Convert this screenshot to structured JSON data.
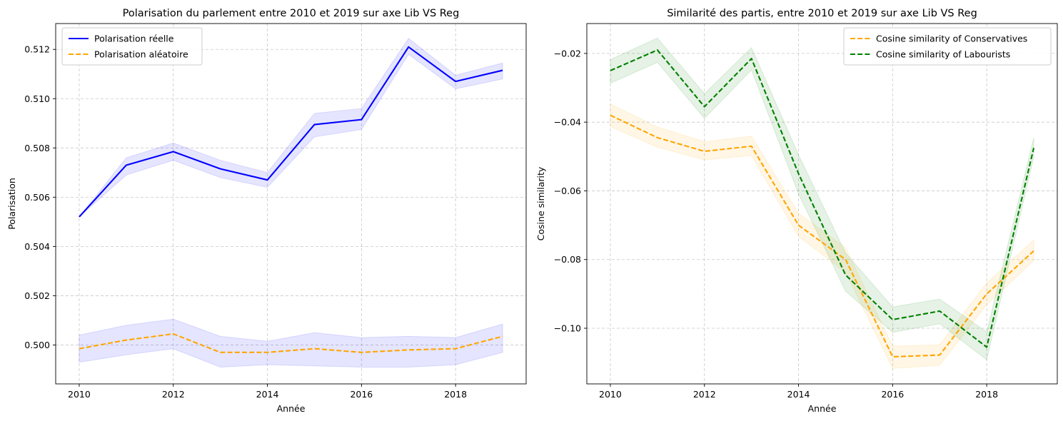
{
  "chart_data": [
    {
      "type": "line",
      "title": "Polarisation du parlement entre 2010 et 2019 sur axe Lib VS Reg",
      "xlabel": "Année",
      "ylabel": "Polarisation",
      "xlim": [
        2009.5,
        2019.5
      ],
      "ylim": [
        0.49842,
        0.51305
      ],
      "xticks": [
        2010,
        2012,
        2014,
        2016,
        2018
      ],
      "yticks": [
        0.5,
        0.502,
        0.504,
        0.506,
        0.508,
        0.51,
        0.512
      ],
      "tick_decimals": 3,
      "grid": true,
      "legend_position": "upper-left",
      "x": [
        2010,
        2011,
        2012,
        2013,
        2014,
        2015,
        2016,
        2017,
        2018,
        2019
      ],
      "series": [
        {
          "name": "Polarisation réelle",
          "color": "#0000ff",
          "band_color": "#0000ff",
          "dash": "solid",
          "values": [
            0.5052,
            0.5073,
            0.50785,
            0.50715,
            0.5067,
            0.50895,
            0.50915,
            0.5121,
            0.5107,
            0.51115
          ],
          "lower": [
            0.5052,
            0.5069,
            0.5075,
            0.5068,
            0.5064,
            0.50845,
            0.50875,
            0.5118,
            0.5104,
            0.5108
          ],
          "upper": [
            0.5052,
            0.5076,
            0.5082,
            0.5075,
            0.507,
            0.5094,
            0.5096,
            0.51245,
            0.51095,
            0.51145
          ]
        },
        {
          "name": "Polarisation aléatoire",
          "color": "#ffa500",
          "band_color": "#0000ff",
          "dash": "dashed",
          "values": [
            0.49985,
            0.5002,
            0.50045,
            0.4997,
            0.4997,
            0.49985,
            0.4997,
            0.4998,
            0.49985,
            0.50035
          ],
          "lower": [
            0.4993,
            0.4996,
            0.49985,
            0.4991,
            0.4992,
            0.49915,
            0.4991,
            0.4991,
            0.4992,
            0.4997
          ],
          "upper": [
            0.5004,
            0.5008,
            0.50105,
            0.50035,
            0.50015,
            0.5005,
            0.5003,
            0.50035,
            0.5003,
            0.50085
          ]
        }
      ]
    },
    {
      "type": "line",
      "title": "Similarité des partis, entre 2010 et 2019 sur axe Lib VS Reg",
      "xlabel": "Année",
      "ylabel": "Cosine similarity",
      "xlim": [
        2009.5,
        2019.5
      ],
      "ylim": [
        -0.1162,
        -0.0113
      ],
      "xticks": [
        2010,
        2012,
        2014,
        2016,
        2018
      ],
      "yticks": [
        -0.1,
        -0.08,
        -0.06,
        -0.04,
        -0.02
      ],
      "tick_decimals": 2,
      "grid": true,
      "legend_position": "upper-right",
      "x": [
        2010,
        2011,
        2012,
        2013,
        2014,
        2015,
        2016,
        2017,
        2018,
        2019
      ],
      "series": [
        {
          "name": "Cosine similarity of Conservatives",
          "color": "#ffa500",
          "band_color": "#ffa500",
          "dash": "dashed",
          "values": [
            -0.038,
            -0.0445,
            -0.0485,
            -0.047,
            -0.07,
            -0.08,
            -0.1083,
            -0.1078,
            -0.09,
            -0.0775
          ],
          "lower": [
            -0.0413,
            -0.0473,
            -0.051,
            -0.0497,
            -0.0733,
            -0.0837,
            -0.1117,
            -0.1108,
            -0.0932,
            -0.0803
          ],
          "upper": [
            -0.0347,
            -0.0414,
            -0.0457,
            -0.0441,
            -0.0665,
            -0.0766,
            -0.1052,
            -0.1048,
            -0.0868,
            -0.0743
          ]
        },
        {
          "name": "Cosine similarity of Labourists",
          "color": "#008000",
          "band_color": "#008000",
          "dash": "dashed",
          "values": [
            -0.025,
            -0.019,
            -0.0355,
            -0.0215,
            -0.055,
            -0.0845,
            -0.0975,
            -0.095,
            -0.1055,
            -0.0475
          ],
          "lower": [
            -0.0287,
            -0.0226,
            -0.0389,
            -0.0248,
            -0.0609,
            -0.0892,
            -0.1012,
            -0.0987,
            -0.1092,
            -0.0502
          ],
          "upper": [
            -0.0218,
            -0.0155,
            -0.0317,
            -0.0183,
            -0.0495,
            -0.0781,
            -0.0938,
            -0.0915,
            -0.1011,
            -0.0445
          ]
        }
      ]
    }
  ]
}
